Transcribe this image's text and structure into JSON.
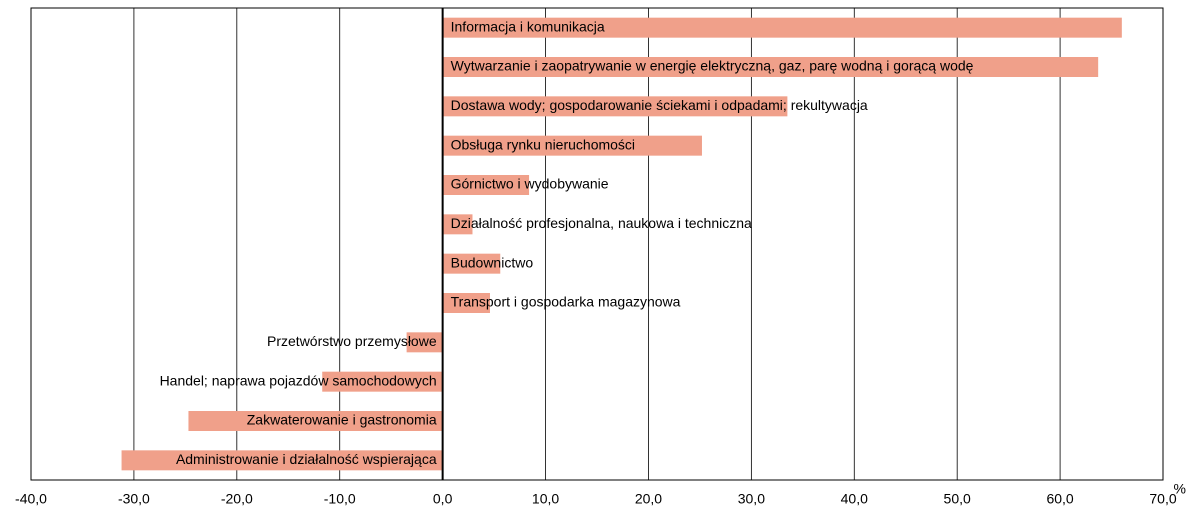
{
  "chart_data": {
    "type": "hbar",
    "categories": [
      "Informacja i komunikacja",
      "Wytwarzanie i zaopatrywanie w energię elektryczną, gaz, parę wodną i gorącą wodę",
      "Dostawa wody; gospodarowanie ściekami i odpadami; rekultywacja",
      "Obsługa rynku nieruchomości",
      "Górnictwo i wydobywanie",
      "Działalność profesjonalna, naukowa i techniczna",
      "Budownictwo",
      "Transport i gospodarka magazynowa",
      "Przetwórstwo przemysłowe",
      "Handel; naprawa pojazdów samochodowych",
      "Zakwaterowanie i gastronomia",
      "Administrowanie i działalność wspierająca"
    ],
    "values": [
      66.0,
      63.7,
      33.5,
      25.2,
      8.4,
      2.9,
      5.6,
      4.6,
      -3.5,
      -11.7,
      -24.7,
      -31.2
    ],
    "color": "#f0a08a",
    "xlim": [
      -40,
      70
    ],
    "xticks": [
      {
        "value": -40,
        "label": "-40,0"
      },
      {
        "value": -30,
        "label": "-30,0"
      },
      {
        "value": -20,
        "label": "-20,0"
      },
      {
        "value": -10,
        "label": "-10,0"
      },
      {
        "value": 0,
        "label": "0,0"
      },
      {
        "value": 10,
        "label": "10,0"
      },
      {
        "value": 20,
        "label": "20,0"
      },
      {
        "value": 30,
        "label": "30,0"
      },
      {
        "value": 40,
        "label": "40,0"
      },
      {
        "value": 50,
        "label": "50,0"
      },
      {
        "value": 60,
        "label": "60,0"
      },
      {
        "value": 70,
        "label": "70,0"
      }
    ],
    "x_unit": "%",
    "grid": true
  }
}
